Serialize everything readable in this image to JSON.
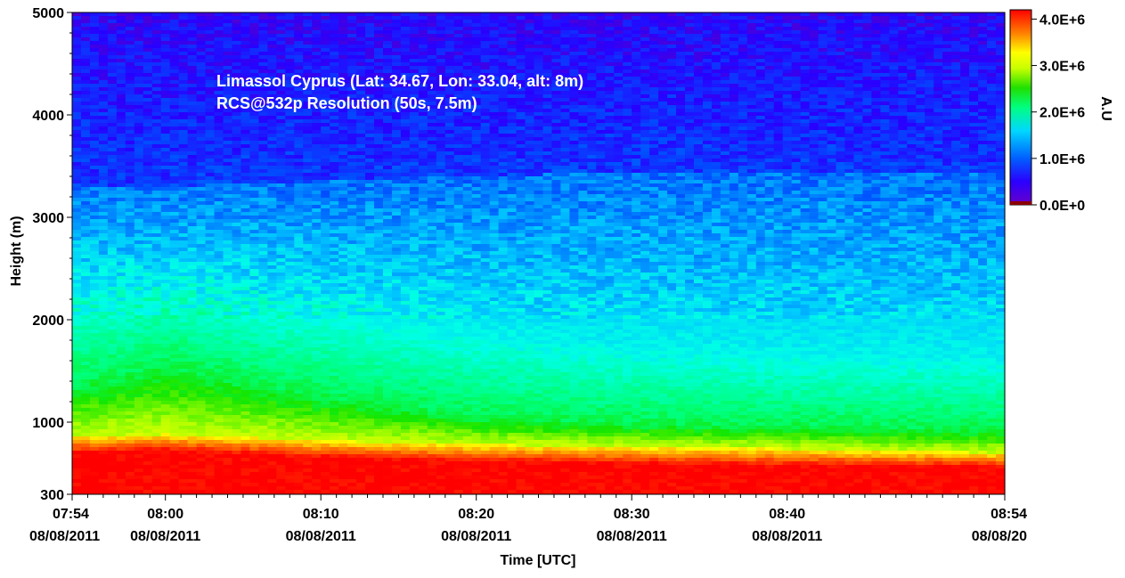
{
  "chart_data": {
    "type": "heatmap",
    "title": "",
    "annotations": [
      "Limassol Cyprus (Lat: 34.67, Lon: 33.04, alt: 8m)",
      "RCS@532p Resolution (50s, 7.5m)"
    ],
    "xlabel": "Time [UTC]",
    "ylabel": "Height (m)",
    "xlim_minutes": [
      0,
      60
    ],
    "ylim": [
      300,
      5000
    ],
    "x_ticks": [
      {
        "minute": 0,
        "time": "07:54",
        "date": "08/08/2011"
      },
      {
        "minute": 6,
        "time": "08:00",
        "date": "08/08/2011"
      },
      {
        "minute": 16,
        "time": "08:10",
        "date": "08/08/2011"
      },
      {
        "minute": 26,
        "time": "08:20",
        "date": "08/08/2011"
      },
      {
        "minute": 36,
        "time": "08:30",
        "date": "08/08/2011"
      },
      {
        "minute": 46,
        "time": "08:40",
        "date": "08/08/2011"
      },
      {
        "minute": 60,
        "time": "08:54",
        "date": "08/08/20"
      }
    ],
    "y_ticks": [
      {
        "value": 300,
        "label": "300"
      },
      {
        "value": 1000,
        "label": "1000"
      },
      {
        "value": 2000,
        "label": "2000"
      },
      {
        "value": 3000,
        "label": "3000"
      },
      {
        "value": 4000,
        "label": "4000"
      },
      {
        "value": 5000,
        "label": "5000"
      }
    ],
    "colorbar": {
      "label": "A.U",
      "range": [
        0,
        4200000
      ],
      "ticks": [
        {
          "value": 0,
          "label": "0.0E+0"
        },
        {
          "value": 1000000,
          "label": "1.0E+6"
        },
        {
          "value": 2000000,
          "label": "2.0E+6"
        },
        {
          "value": 3000000,
          "label": "3.0E+6"
        },
        {
          "value": 4000000,
          "label": "4.0E+6"
        }
      ]
    },
    "layer_boundaries_m": {
      "x_minutes": [
        0,
        6,
        16,
        26,
        36,
        46,
        60
      ],
      "saturated_top": [
        700,
        720,
        650,
        610,
        590,
        570,
        560
      ],
      "yellow_band": [
        860,
        880,
        820,
        780,
        760,
        740,
        700
      ],
      "green_top": [
        1350,
        1550,
        1250,
        1050,
        980,
        960,
        920
      ],
      "cyan_top": [
        2300,
        2400,
        2150,
        1900,
        1750,
        1700,
        1650
      ],
      "aerosol_top": [
        3300,
        3300,
        3350,
        3400,
        3440,
        3430,
        3420
      ]
    }
  }
}
